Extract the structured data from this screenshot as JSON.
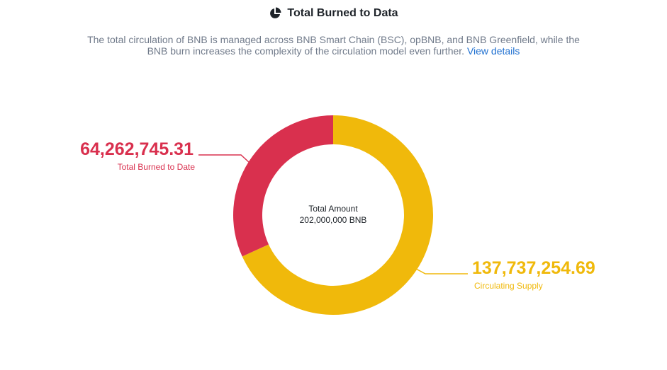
{
  "header": {
    "title": "Total Burned to Data",
    "icon": "pie-chart-icon"
  },
  "description": {
    "text": "The total circulation of BNB is managed across BNB Smart Chain (BSC), opBNB, and BNB Greenfield, while the BNB burn increases the complexity of the circulation model even further.",
    "link_label": "View details"
  },
  "colors": {
    "burned": "#d9304e",
    "circulating": "#f0b90b",
    "title": "#1e2329",
    "description": "#707a8a",
    "link": "#1e6fd0"
  },
  "chart_data": {
    "type": "pie",
    "donut": true,
    "center_label": "Total Amount",
    "center_value": "202,000,000 BNB",
    "slices": [
      {
        "label": "Total Burned to Date",
        "value": 64262745.31,
        "display_value": "64,262,745.31",
        "color": "#d9304e"
      },
      {
        "label": "Circulating Supply",
        "value": 137737254.69,
        "display_value": "137,737,254.69",
        "color": "#f0b90b"
      }
    ]
  }
}
